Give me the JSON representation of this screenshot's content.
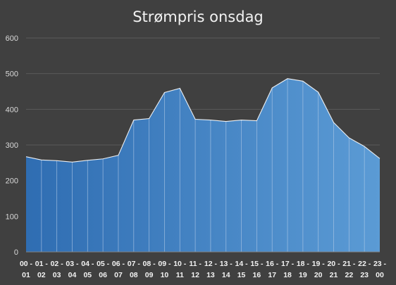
{
  "chart_data": {
    "type": "area",
    "title": "Strømpris onsdag",
    "xlabel": "",
    "ylabel": "",
    "categories": [
      "00 - 01",
      "01 - 02",
      "02 - 03",
      "03 - 04",
      "04 - 05",
      "05 - 06",
      "06 - 07",
      "07 - 08",
      "08 - 09",
      "09 - 10",
      "10 - 11",
      "11 - 12",
      "12 - 13",
      "13 - 14",
      "14 - 15",
      "15 - 16",
      "16 - 17",
      "17 - 18",
      "18 - 19",
      "19 - 20",
      "20 - 21",
      "21 - 22",
      "22 - 23",
      "23 - 00"
    ],
    "xticks_top": [
      "00 -",
      "01 -",
      "02 -",
      "03 -",
      "04 -",
      "05 -",
      "06 -",
      "07 -",
      "08 -",
      "09 -",
      "10 -",
      "11 -",
      "12 -",
      "13 -",
      "14 -",
      "15 -",
      "16 -",
      "17 -",
      "18 -",
      "19 -",
      "20 -",
      "21 -",
      "22 -",
      "23 -"
    ],
    "xticks_bottom": [
      "01",
      "02",
      "03",
      "04",
      "05",
      "06",
      "07",
      "08",
      "09",
      "10",
      "11",
      "12",
      "13",
      "14",
      "15",
      "16",
      "17",
      "18",
      "19",
      "20",
      "21",
      "22",
      "23",
      "00"
    ],
    "values": [
      267,
      258,
      256,
      252,
      257,
      261,
      271,
      370,
      374,
      447,
      459,
      372,
      370,
      366,
      370,
      368,
      460,
      486,
      479,
      448,
      363,
      320,
      296,
      262
    ],
    "ylim": [
      0,
      600
    ],
    "yticks": [
      "0",
      "100",
      "200",
      "300",
      "400",
      "500",
      "600"
    ],
    "grid": true,
    "legend": "none",
    "colors": {
      "background": "#404040",
      "gradient_start": "#2f6db2",
      "gradient_end": "#5b9bd5",
      "separator": "#b4cce8",
      "outline": "#ffffff",
      "gridline": "#5a5a5a"
    }
  }
}
